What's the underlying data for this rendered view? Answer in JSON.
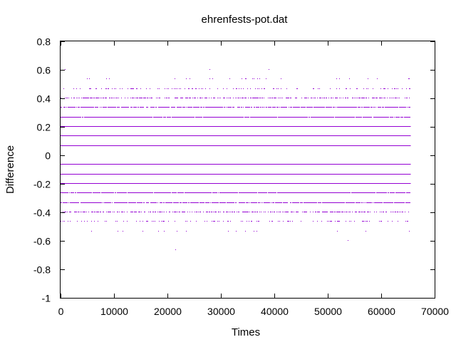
{
  "chart_data": {
    "type": "scatter",
    "title": "ehrenfests-pot.dat",
    "xlabel": "Times",
    "ylabel": "Difference",
    "xlim": [
      0,
      70000
    ],
    "ylim": [
      -1,
      0.8
    ],
    "x_ticks": [
      0,
      10000,
      20000,
      30000,
      40000,
      50000,
      60000,
      70000
    ],
    "y_ticks": [
      -1,
      -0.8,
      -0.6,
      -0.4,
      -0.2,
      0,
      0.2,
      0.4,
      0.6,
      0.8
    ],
    "x_tick_labels": [
      "0",
      "10000",
      "20000",
      "30000",
      "40000",
      "50000",
      "60000",
      "70000"
    ],
    "y_tick_labels": [
      "-1",
      "-0.8",
      "-0.6",
      "-0.4",
      "-0.2",
      "0",
      "0.2",
      "0.4",
      "0.6",
      "0.8"
    ],
    "grid": false,
    "series": [
      {
        "color": "#9400d3",
        "x_range": [
          0,
          65536
        ],
        "levels": [
          {
            "y": 0.6667,
            "density": 0.0008
          },
          {
            "y": 0.6,
            "density": 0.008
          },
          {
            "y": 0.5333,
            "density": 0.04
          },
          {
            "y": 0.4667,
            "density": 0.2
          },
          {
            "y": 0.4,
            "density": 0.55
          },
          {
            "y": 0.3333,
            "density": 0.85
          },
          {
            "y": 0.2667,
            "density": 0.95
          },
          {
            "y": 0.2,
            "density": 1.0
          },
          {
            "y": 0.1333,
            "density": 1.0
          },
          {
            "y": 0.0667,
            "density": 1.0
          },
          {
            "y": -0.0667,
            "density": 1.0
          },
          {
            "y": -0.1333,
            "density": 1.0
          },
          {
            "y": -0.2,
            "density": 1.0
          },
          {
            "y": -0.2667,
            "density": 0.95
          },
          {
            "y": -0.3333,
            "density": 0.85
          },
          {
            "y": -0.4,
            "density": 0.55
          },
          {
            "y": -0.4667,
            "density": 0.2
          },
          {
            "y": -0.5333,
            "density": 0.04
          },
          {
            "y": -0.6,
            "density": 0.008
          },
          {
            "y": -0.6667,
            "density": 0.002
          },
          {
            "y": -0.7333,
            "density": 0.0008
          }
        ]
      }
    ]
  }
}
